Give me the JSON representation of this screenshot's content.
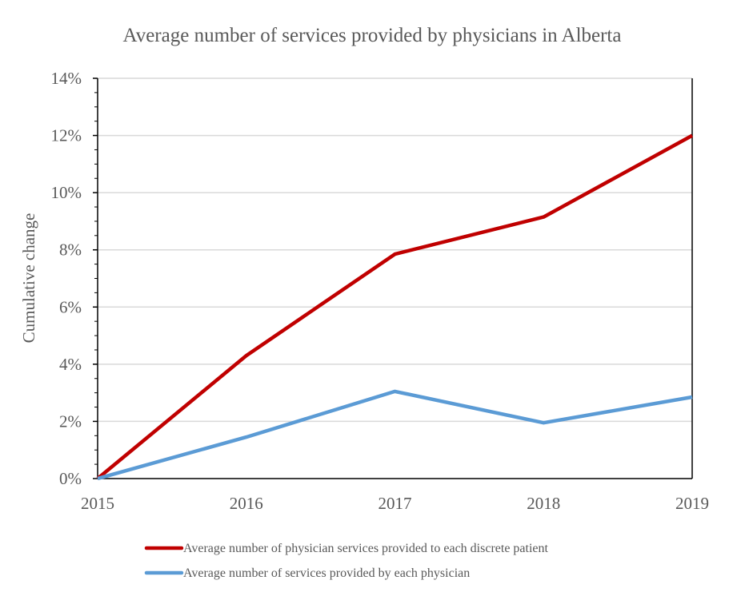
{
  "chart_data": {
    "type": "line",
    "title": "Average number of services provided by physicians in Alberta",
    "xlabel": "",
    "ylabel": "Cumulative change",
    "x": [
      "2015",
      "2016",
      "2017",
      "2018",
      "2019"
    ],
    "ylim": [
      0,
      14
    ],
    "y_ticks": [
      0,
      2,
      4,
      6,
      8,
      10,
      12,
      14
    ],
    "y_tick_labels": [
      "0%",
      "2%",
      "4%",
      "6%",
      "8%",
      "10%",
      "12%",
      "14%"
    ],
    "grid": true,
    "legend_position": "bottom",
    "series": [
      {
        "name": "Average number of physician services provided to each discrete patient",
        "color": "#c00000",
        "values": [
          0,
          4.3,
          7.85,
          9.15,
          12.0
        ]
      },
      {
        "name": "Average number of services provided by each physician",
        "color": "#5b9bd5",
        "values": [
          0,
          1.45,
          3.05,
          1.95,
          2.85
        ]
      }
    ]
  }
}
